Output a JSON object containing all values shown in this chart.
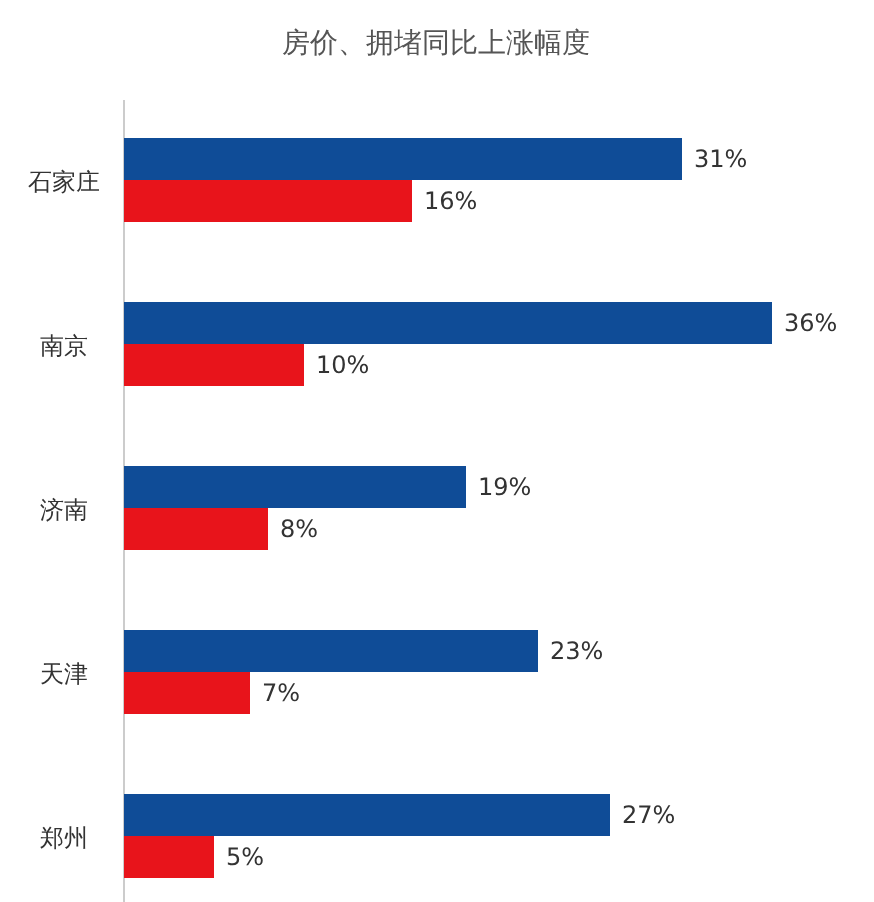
{
  "chart_data": {
    "type": "bar",
    "orientation": "horizontal",
    "title": "房价、拥堵同比上涨幅度",
    "categories": [
      "石家庄",
      "南京",
      "济南",
      "天津",
      "郑州"
    ],
    "series": [
      {
        "color": "#0f4c97",
        "values": [
          31,
          36,
          19,
          23,
          27
        ],
        "value_labels": [
          "31%",
          "36%",
          "19%",
          "23%",
          "27%"
        ]
      },
      {
        "color": "#e8141b",
        "values": [
          16,
          10,
          8,
          7,
          5
        ],
        "value_labels": [
          "16%",
          "10%",
          "8%",
          "7%",
          "5%"
        ]
      }
    ]
  }
}
